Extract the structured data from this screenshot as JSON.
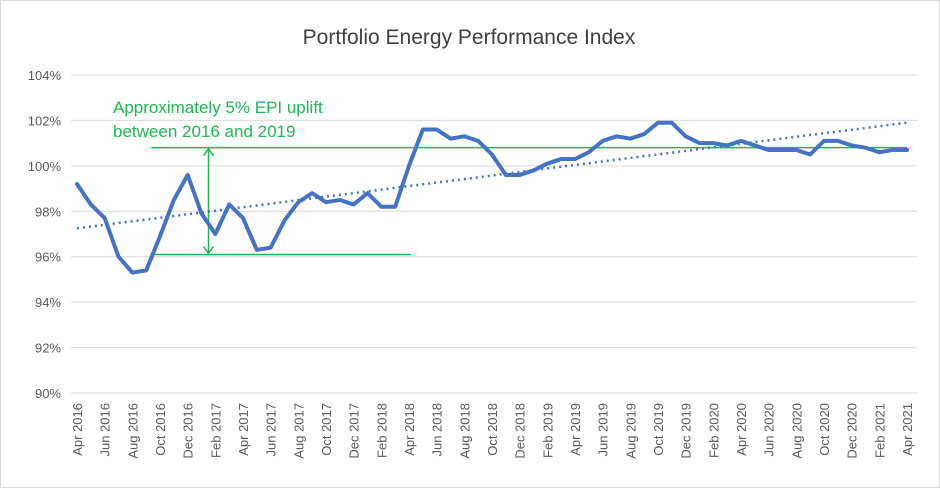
{
  "chart_data": {
    "type": "line",
    "title": "Portfolio Energy Performance Index",
    "xlabel": "",
    "ylabel": "",
    "ylim": [
      90,
      104
    ],
    "yticks": [
      "90%",
      "92%",
      "94%",
      "96%",
      "98%",
      "100%",
      "102%",
      "104%"
    ],
    "ytick_values": [
      90,
      92,
      94,
      96,
      98,
      100,
      102,
      104
    ],
    "grid": true,
    "legend": "none",
    "x": [
      "Apr 2016",
      "May 2016",
      "Jun 2016",
      "Jul 2016",
      "Aug 2016",
      "Sep 2016",
      "Oct 2016",
      "Nov 2016",
      "Dec 2016",
      "Jan 2017",
      "Feb 2017",
      "Mar 2017",
      "Apr 2017",
      "May 2017",
      "Jun 2017",
      "Jul 2017",
      "Aug 2017",
      "Sep 2017",
      "Oct 2017",
      "Nov 2017",
      "Dec 2017",
      "Jan 2018",
      "Feb 2018",
      "Mar 2018",
      "Apr 2018",
      "May 2018",
      "Jun 2018",
      "Jul 2018",
      "Aug 2018",
      "Sep 2018",
      "Oct 2018",
      "Nov 2018",
      "Dec 2018",
      "Jan 2019",
      "Feb 2019",
      "Mar 2019",
      "Apr 2019",
      "May 2019",
      "Jun 2019",
      "Jul 2019",
      "Aug 2019",
      "Sep 2019",
      "Oct 2019",
      "Nov 2019",
      "Dec 2019",
      "Jan 2020",
      "Feb 2020",
      "Mar 2020",
      "Apr 2020",
      "May 2020",
      "Jun 2020",
      "Jul 2020",
      "Aug 2020",
      "Sep 2020",
      "Oct 2020",
      "Nov 2020",
      "Dec 2020",
      "Jan 2021",
      "Feb 2021",
      "Mar 2021",
      "Apr 2021"
    ],
    "series": [
      {
        "name": "EPI",
        "color": "#4472c4",
        "values": [
          99.2,
          98.3,
          97.7,
          96.0,
          95.3,
          95.4,
          96.9,
          98.5,
          99.6,
          97.9,
          97.0,
          98.3,
          97.7,
          96.3,
          96.4,
          97.6,
          98.4,
          98.8,
          98.4,
          98.5,
          98.3,
          98.8,
          98.2,
          98.2,
          100.0,
          101.6,
          101.6,
          101.2,
          101.3,
          101.1,
          100.5,
          99.6,
          99.6,
          99.8,
          100.1,
          100.3,
          100.3,
          100.6,
          101.1,
          101.3,
          101.2,
          101.4,
          101.9,
          101.9,
          101.3,
          101.0,
          101.0,
          100.9,
          101.1,
          100.9,
          100.7,
          100.7,
          100.7,
          100.5,
          101.1,
          101.1,
          100.9,
          100.8,
          100.6,
          100.7,
          100.7
        ]
      },
      {
        "name": "Linear trend",
        "color": "#4472c4",
        "style": "dotted",
        "start": 97.25,
        "end": 101.9
      }
    ],
    "annotations": {
      "text_line1": "Approximately 5% EPI uplift",
      "text_line2": "between 2016 and 2019",
      "color": "#1db954",
      "upper_level": 100.8,
      "lower_level": 96.1,
      "upper_from": "Sep 2016",
      "lower_from": "Sep 2016",
      "lower_to": "Apr 2018",
      "arrow_at": "Jan 2017"
    }
  }
}
